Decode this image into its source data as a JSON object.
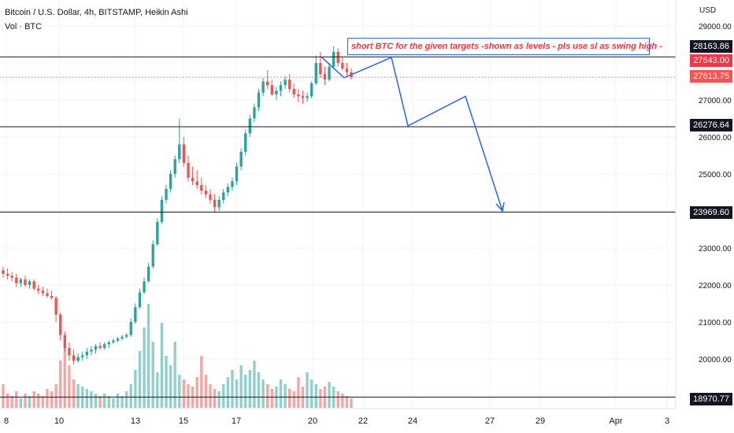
{
  "header": {
    "title": "Bitcoin / U.S. Dollar, 4h, BITSTAMP, Heikin Ashi",
    "volume_label": "Vol · BTC"
  },
  "axis": {
    "currency": "USD",
    "y_ticks": [
      "29000.00",
      "27000.00",
      "26000.00",
      "25000.00",
      "24000.00",
      "23000.00",
      "22000.00",
      "21000.00",
      "20000.00"
    ],
    "x_ticks": [
      "8",
      "10",
      "13",
      "15",
      "17",
      "20",
      "22",
      "24",
      "27",
      "29",
      "Apr",
      "3"
    ]
  },
  "price_tags": {
    "level_1": "28163.86",
    "current_1": "27643.00",
    "current_2": "27613.75",
    "level_2": "26276.64",
    "level_3": "23969.60",
    "level_4": "18970.77"
  },
  "annotation": "short BTC for the given targets -shown as levels - pls use sl as swing high -",
  "colors": {
    "up": "#26a69a",
    "down": "#ef5350",
    "vol_up": "#8fd1ca",
    "vol_down": "#f4a6a4",
    "level_line": "#131722",
    "projection": "#2962ff",
    "grid": "#f0f3fa"
  },
  "chart_data": {
    "type": "candlestick",
    "title": "Bitcoin / U.S. Dollar, 4h, BITSTAMP, Heikin Ashi",
    "ylabel": "USD",
    "ylim": [
      18500,
      29500
    ],
    "horizontal_levels": [
      28163.86,
      26276.64,
      23969.6,
      18970.77
    ],
    "current_price": [
      27643.0,
      27613.75
    ],
    "projection_path": [
      {
        "x": "Mar 20",
        "y": 28163.86
      },
      {
        "x": "Mar 20",
        "y": 27600
      },
      {
        "x": "Mar 22",
        "y": 28150
      },
      {
        "x": "Mar 24",
        "y": 26300
      },
      {
        "x": "Mar 26",
        "y": 27100
      },
      {
        "x": "Mar 27",
        "y": 24000
      }
    ],
    "candles": [
      [
        22400,
        22500,
        22200,
        22300
      ],
      [
        22300,
        22450,
        22150,
        22250
      ],
      [
        22250,
        22350,
        22100,
        22200
      ],
      [
        22200,
        22300,
        21950,
        22050
      ],
      [
        22050,
        22200,
        21950,
        22150
      ],
      [
        22150,
        22250,
        21950,
        22000
      ],
      [
        22000,
        22150,
        21900,
        22100
      ],
      [
        22100,
        22150,
        21850,
        21900
      ],
      [
        21900,
        22000,
        21750,
        21850
      ],
      [
        21850,
        21950,
        21700,
        21780
      ],
      [
        21780,
        21900,
        21650,
        21700
      ],
      [
        21700,
        21850,
        21600,
        21650
      ],
      [
        21650,
        21700,
        21000,
        21200
      ],
      [
        21200,
        21250,
        20500,
        20650
      ],
      [
        20650,
        20750,
        20200,
        20300
      ],
      [
        20300,
        20450,
        19950,
        20100
      ],
      [
        20100,
        20250,
        19850,
        19950
      ],
      [
        19950,
        20150,
        19900,
        20050
      ],
      [
        20050,
        20200,
        19950,
        20100
      ],
      [
        20100,
        20300,
        20000,
        20200
      ],
      [
        20200,
        20350,
        20100,
        20250
      ],
      [
        20250,
        20400,
        20150,
        20350
      ],
      [
        20350,
        20450,
        20250,
        20300
      ],
      [
        20300,
        20450,
        20250,
        20400
      ],
      [
        20400,
        20500,
        20300,
        20450
      ],
      [
        20450,
        20550,
        20400,
        20500
      ],
      [
        20500,
        20600,
        20450,
        20550
      ],
      [
        20550,
        20650,
        20500,
        20600
      ],
      [
        20600,
        20700,
        20550,
        20650
      ],
      [
        20650,
        21100,
        20600,
        21000
      ],
      [
        21000,
        21500,
        20950,
        21400
      ],
      [
        21400,
        21900,
        21350,
        21800
      ],
      [
        21800,
        22200,
        21750,
        22100
      ],
      [
        22100,
        22600,
        22050,
        22500
      ],
      [
        22500,
        23200,
        22450,
        23100
      ],
      [
        23100,
        23800,
        23050,
        23700
      ],
      [
        23700,
        24400,
        23650,
        24300
      ],
      [
        24300,
        24700,
        24200,
        24600
      ],
      [
        24600,
        25100,
        24500,
        25000
      ],
      [
        25000,
        25500,
        24900,
        25400
      ],
      [
        25400,
        26500,
        25300,
        25800
      ],
      [
        25800,
        26000,
        25200,
        25300
      ],
      [
        25300,
        25500,
        24800,
        24900
      ],
      [
        24900,
        25200,
        24700,
        24800
      ],
      [
        24800,
        25100,
        24600,
        24700
      ],
      [
        24700,
        24900,
        24450,
        24550
      ],
      [
        24550,
        24700,
        24350,
        24450
      ],
      [
        24450,
        24600,
        24200,
        24300
      ],
      [
        24300,
        24450,
        23950,
        24100
      ],
      [
        24100,
        24400,
        24000,
        24300
      ],
      [
        24300,
        24600,
        24200,
        24500
      ],
      [
        24500,
        24750,
        24400,
        24650
      ],
      [
        24650,
        24900,
        24550,
        24800
      ],
      [
        24800,
        25300,
        24700,
        25200
      ],
      [
        25200,
        25700,
        25100,
        25600
      ],
      [
        25600,
        26200,
        25500,
        26100
      ],
      [
        26100,
        26600,
        26000,
        26500
      ],
      [
        26500,
        26900,
        26400,
        26800
      ],
      [
        26800,
        27300,
        26700,
        27200
      ],
      [
        27200,
        27600,
        27100,
        27500
      ],
      [
        27500,
        27800,
        27300,
        27400
      ],
      [
        27400,
        27550,
        27100,
        27150
      ],
      [
        27150,
        27350,
        27000,
        27250
      ],
      [
        27250,
        27500,
        27100,
        27400
      ],
      [
        27400,
        27650,
        27300,
        27550
      ],
      [
        27550,
        27700,
        27200,
        27300
      ],
      [
        27300,
        27450,
        27050,
        27150
      ],
      [
        27150,
        27300,
        26950,
        27100
      ],
      [
        27100,
        27250,
        26900,
        27050
      ],
      [
        27050,
        27200,
        26950,
        27100
      ],
      [
        27100,
        27500,
        27050,
        27450
      ],
      [
        27450,
        28200,
        27400,
        28000
      ],
      [
        28000,
        28300,
        27600,
        27700
      ],
      [
        27700,
        27900,
        27400,
        27550
      ],
      [
        27550,
        28000,
        27500,
        27900
      ],
      [
        27900,
        28450,
        27850,
        28300
      ],
      [
        28300,
        28400,
        27900,
        28000
      ],
      [
        28000,
        28150,
        27800,
        27850
      ],
      [
        27850,
        28000,
        27650,
        27750
      ],
      [
        27750,
        27850,
        27550,
        27613.75
      ]
    ],
    "volume": [
      1,
      0.6,
      0.5,
      0.7,
      0.4,
      0.6,
      0.5,
      0.7,
      0.6,
      0.5,
      0.8,
      0.7,
      1.0,
      2.0,
      2.6,
      1.8,
      1.2,
      1.0,
      0.9,
      0.8,
      0.7,
      0.6,
      0.5,
      0.6,
      0.5,
      0.4,
      0.6,
      0.5,
      0.7,
      1.0,
      1.6,
      2.4,
      3.4,
      4.4,
      2.8,
      1.5,
      3.6,
      2.2,
      1.8,
      2.8,
      1.4,
      1.2,
      1.0,
      0.9,
      1.3,
      2.2,
      1.4,
      1.0,
      0.8,
      0.7,
      1.0,
      1.3,
      1.6,
      1.2,
      1.8,
      1.4,
      1.6,
      2.0,
      1.5,
      1.2,
      1.0,
      0.8,
      0.9,
      1.2,
      1.0,
      0.8,
      0.7,
      1.3,
      0.9,
      1.5,
      1.2,
      1.0,
      0.8,
      0.9,
      1.1,
      0.9,
      0.7,
      0.6,
      0.5,
      0.4
    ]
  }
}
